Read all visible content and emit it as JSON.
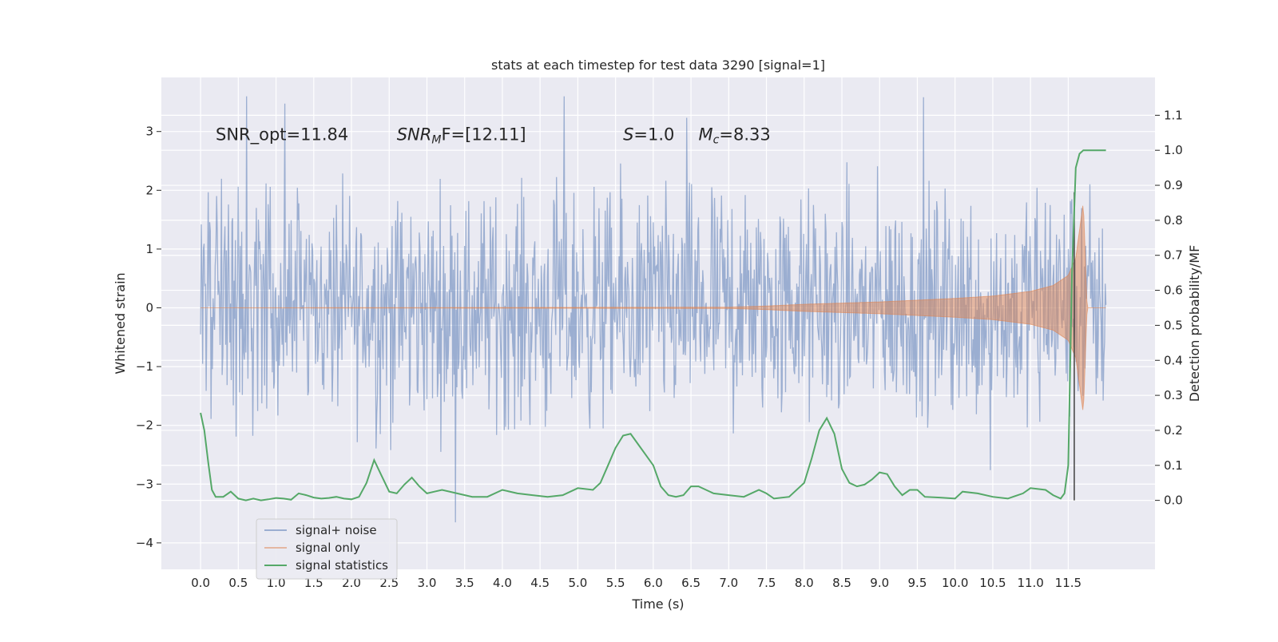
{
  "chart_data": {
    "type": "line",
    "title": "stats at each timestep for test data 3290 [signal=1]",
    "xlabel": "Time (s)",
    "ylabel_left": "Whitened strain",
    "ylabel_right": "Detection probability/MF",
    "xlim": [
      -0.52,
      12.65
    ],
    "ylim_left": [
      -4.45,
      3.92
    ],
    "ylim_right": [
      -0.197,
      1.208
    ],
    "x_ticks": [
      0.0,
      0.5,
      1.0,
      1.5,
      2.0,
      2.5,
      3.0,
      3.5,
      4.0,
      4.5,
      5.0,
      5.5,
      6.0,
      6.5,
      7.0,
      7.5,
      8.0,
      8.5,
      9.0,
      9.5,
      10.0,
      10.5,
      11.0,
      11.5
    ],
    "x_tick_labels": [
      "0.0",
      "0.5",
      "1.0",
      "1.5",
      "2.0",
      "2.5",
      "3.0",
      "3.5",
      "4.0",
      "4.5",
      "5.0",
      "5.5",
      "6.0",
      "6.5",
      "7.0",
      "7.5",
      "8.0",
      "8.5",
      "9.0",
      "9.5",
      "10.0",
      "10.5",
      "11.0",
      "11.5"
    ],
    "y_left_ticks": [
      -4,
      -3,
      -2,
      -1,
      0,
      1,
      2,
      3
    ],
    "y_left_tick_labels": [
      "−4",
      "−3",
      "−2",
      "−1",
      "0",
      "1",
      "2",
      "3"
    ],
    "y_right_ticks": [
      0.0,
      0.1,
      0.2,
      0.3,
      0.4,
      0.5,
      0.6,
      0.7,
      0.8,
      0.9,
      1.0,
      1.1
    ],
    "y_right_tick_labels": [
      "0.0",
      "0.1",
      "0.2",
      "0.3",
      "0.4",
      "0.5",
      "0.6",
      "0.7",
      "0.8",
      "0.9",
      "1.0",
      "1.1"
    ],
    "grid": true,
    "legend_position": "lower-left",
    "annotations": [
      {
        "text_main": "SNR_opt=11.84",
        "text_sub": "",
        "text_tail": "",
        "x": 0.2,
        "y": 2.85
      },
      {
        "text_main": "SNR",
        "text_sub": "M",
        "text_tail": "F=[12.11]",
        "x": 2.6,
        "y": 2.85
      },
      {
        "text_main": "S",
        "text_sub": "",
        "text_tail": "=1.0",
        "x": 5.6,
        "y": 2.85
      },
      {
        "text_main": "M",
        "text_sub": "c",
        "text_tail": "=8.33",
        "x": 6.6,
        "y": 2.85
      }
    ],
    "series": [
      {
        "name": "signal+ noise",
        "axis": "left",
        "color": "#4c72b0",
        "opacity": 0.5,
        "x_range": [
          0.0,
          12.0
        ],
        "envelope_typical": [
          -1.5,
          1.5
        ],
        "min": -3.65,
        "max": 3.6
      },
      {
        "name": "signal only",
        "axis": "left",
        "color": "#dd8452",
        "opacity": 0.5,
        "x": [
          0.0,
          7.0,
          7.5,
          8.0,
          8.5,
          9.0,
          9.5,
          10.0,
          10.5,
          11.0,
          11.3,
          11.5,
          11.6,
          11.7,
          11.75,
          12.0
        ],
        "amplitude": [
          0.0,
          0.01,
          0.03,
          0.06,
          0.08,
          0.1,
          0.13,
          0.16,
          0.2,
          0.28,
          0.38,
          0.55,
          0.85,
          1.8,
          0.0,
          0.0
        ]
      },
      {
        "name": "signal statistics",
        "axis": "right",
        "color": "#55a868",
        "x": [
          0.0,
          0.05,
          0.1,
          0.15,
          0.2,
          0.3,
          0.4,
          0.5,
          0.6,
          0.7,
          0.8,
          0.9,
          1.0,
          1.1,
          1.2,
          1.3,
          1.4,
          1.5,
          1.6,
          1.7,
          1.8,
          1.9,
          2.0,
          2.1,
          2.2,
          2.3,
          2.4,
          2.5,
          2.6,
          2.7,
          2.8,
          2.9,
          3.0,
          3.1,
          3.2,
          3.4,
          3.6,
          3.8,
          4.0,
          4.2,
          4.4,
          4.6,
          4.8,
          5.0,
          5.2,
          5.3,
          5.4,
          5.5,
          5.6,
          5.7,
          5.8,
          5.9,
          6.0,
          6.1,
          6.2,
          6.3,
          6.4,
          6.5,
          6.6,
          6.8,
          7.0,
          7.2,
          7.4,
          7.5,
          7.6,
          7.8,
          8.0,
          8.1,
          8.2,
          8.3,
          8.4,
          8.5,
          8.6,
          8.7,
          8.8,
          8.9,
          9.0,
          9.1,
          9.2,
          9.3,
          9.4,
          9.5,
          9.6,
          9.8,
          10.0,
          10.1,
          10.3,
          10.5,
          10.7,
          10.9,
          11.0,
          11.2,
          11.3,
          11.4,
          11.45,
          11.5,
          11.55,
          11.6,
          11.65,
          11.7,
          11.75,
          11.8,
          11.9,
          12.0
        ],
        "values": [
          0.25,
          0.2,
          0.11,
          0.03,
          0.01,
          0.01,
          0.025,
          0.005,
          0.0,
          0.005,
          0.0,
          0.003,
          0.007,
          0.005,
          0.002,
          0.02,
          0.015,
          0.008,
          0.005,
          0.007,
          0.01,
          0.005,
          0.003,
          0.01,
          0.05,
          0.115,
          0.07,
          0.025,
          0.02,
          0.045,
          0.065,
          0.04,
          0.02,
          0.025,
          0.03,
          0.02,
          0.01,
          0.01,
          0.03,
          0.02,
          0.015,
          0.01,
          0.015,
          0.035,
          0.03,
          0.05,
          0.1,
          0.15,
          0.185,
          0.19,
          0.16,
          0.13,
          0.1,
          0.04,
          0.015,
          0.01,
          0.015,
          0.04,
          0.04,
          0.02,
          0.015,
          0.01,
          0.03,
          0.02,
          0.005,
          0.01,
          0.05,
          0.12,
          0.2,
          0.235,
          0.19,
          0.09,
          0.05,
          0.04,
          0.045,
          0.06,
          0.08,
          0.075,
          0.04,
          0.015,
          0.03,
          0.03,
          0.01,
          0.008,
          0.005,
          0.025,
          0.02,
          0.01,
          0.005,
          0.02,
          0.035,
          0.03,
          0.015,
          0.005,
          0.02,
          0.1,
          0.65,
          0.95,
          0.99,
          1.0,
          1.0,
          1.0,
          1.0,
          1.0
        ]
      }
    ],
    "vertical_marker": {
      "x": 11.58,
      "color": "#404040"
    }
  }
}
